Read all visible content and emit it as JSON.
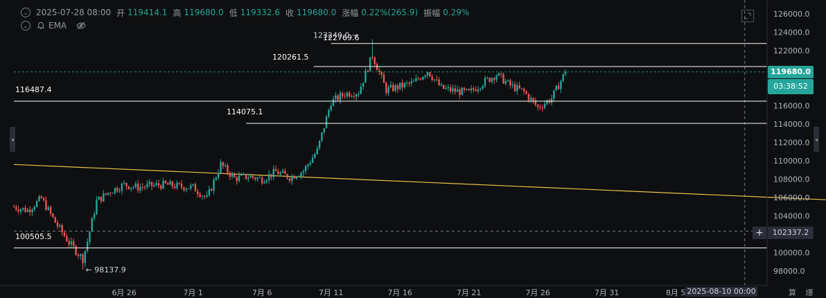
{
  "header": {
    "datetime": "2025-07-28 08:00",
    "open_label": "开",
    "open": "119414.1",
    "high_label": "高",
    "high": "119680.0",
    "low_label": "低",
    "low": "119332.6",
    "close_label": "收",
    "close": "119680.0",
    "change_label": "涨幅",
    "change": "0.22%(265.9)",
    "amplitude_label": "振幅",
    "amplitude": "0.29%",
    "indicator": "EMA"
  },
  "price_axis": {
    "ticks": [
      "126000.0",
      "124000.0",
      "122000.0",
      "120000.0",
      "118000.0",
      "116000.0",
      "114000.0",
      "112000.0",
      "110000.0",
      "108000.0",
      "106000.0",
      "104000.0",
      "102000.0",
      "100000.0",
      "98000.0"
    ]
  },
  "time_axis": {
    "ticks": [
      "6月 26",
      "7月 1",
      "7月 6",
      "7月 11",
      "7月 16",
      "7月 21",
      "7月 26",
      "7月 31",
      "8月 5"
    ],
    "crosshair_label": "2025-08-10 00:00"
  },
  "last_price": {
    "value": "119680.0",
    "countdown": "03:38:52"
  },
  "crosshair_price": "102337.2",
  "bottom_labels": [
    "算",
    "爆"
  ],
  "colors": {
    "up": "#26a69a",
    "down": "#ef5350",
    "trendline": "#e8c547",
    "level": "#ffffff",
    "bg": "#0e0f11"
  },
  "chart_data": {
    "type": "candlestick",
    "x_start": "2025-06-20",
    "timeframe": "4h",
    "ylim": [
      96800,
      127200
    ],
    "levels": [
      {
        "value": 122769.6,
        "label": "122769.6"
      },
      {
        "value": 120261.5,
        "label": "120261.5"
      },
      {
        "value": 116487.4,
        "label": "116487.4"
      },
      {
        "value": 114075.1,
        "label": "114075.1"
      },
      {
        "value": 100505.5,
        "label": "100505.5"
      }
    ],
    "annotations": [
      {
        "text": "123240.0 →",
        "date": "2025-07-14",
        "price": 123240.0
      },
      {
        "text": "← 98137.9",
        "date": "2025-06-23",
        "price": 98137.9
      }
    ],
    "trendline": {
      "start": [
        "2025-06-18",
        109600
      ],
      "end": [
        "2025-08-26",
        105100
      ]
    },
    "path": [
      [
        "2025-06-18",
        105000
      ],
      [
        "2025-06-19",
        104600
      ],
      [
        "2025-06-20",
        105900
      ],
      [
        "2025-06-21",
        103300
      ],
      [
        "2025-06-22",
        101100
      ],
      [
        "2025-06-23",
        99300
      ],
      [
        "2025-06-23",
        101000
      ],
      [
        "2025-06-24",
        105600
      ],
      [
        "2025-06-25",
        106700
      ],
      [
        "2025-06-26",
        107400
      ],
      [
        "2025-06-27",
        107100
      ],
      [
        "2025-06-28",
        107300
      ],
      [
        "2025-06-29",
        107400
      ],
      [
        "2025-06-30",
        107200
      ],
      [
        "2025-07-01",
        107100
      ],
      [
        "2025-07-02",
        105900
      ],
      [
        "2025-07-03",
        109600
      ],
      [
        "2025-07-04",
        108100
      ],
      [
        "2025-07-05",
        108300
      ],
      [
        "2025-07-06",
        108000
      ],
      [
        "2025-07-07",
        108800
      ],
      [
        "2025-07-08",
        108200
      ],
      [
        "2025-07-09",
        108900
      ],
      [
        "2025-07-10",
        111100
      ],
      [
        "2025-07-11",
        116400
      ],
      [
        "2025-07-12",
        117300
      ],
      [
        "2025-07-13",
        117500
      ],
      [
        "2025-07-14",
        121500
      ],
      [
        "2025-07-15",
        117700
      ],
      [
        "2025-07-16",
        118100
      ],
      [
        "2025-07-17",
        118500
      ],
      [
        "2025-07-18",
        119800
      ],
      [
        "2025-07-19",
        117900
      ],
      [
        "2025-07-20",
        117600
      ],
      [
        "2025-07-21",
        117400
      ],
      [
        "2025-07-22",
        118500
      ],
      [
        "2025-07-23",
        119400
      ],
      [
        "2025-07-24",
        118200
      ],
      [
        "2025-07-25",
        117500
      ],
      [
        "2025-07-26",
        115800
      ],
      [
        "2025-07-27",
        116800
      ],
      [
        "2025-07-28",
        119680
      ]
    ]
  }
}
